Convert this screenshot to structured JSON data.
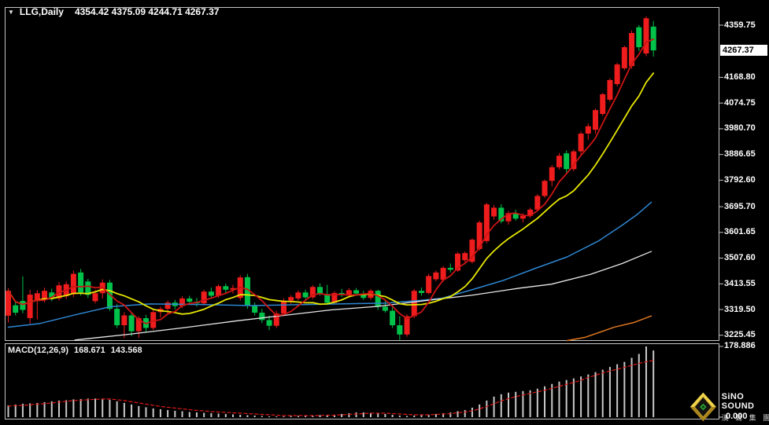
{
  "title_bar": {
    "symbol_period": "LLG,Daily",
    "ohlc": "4354.42 4375.09 4244.71 4267.37"
  },
  "price_axis": {
    "labels": [
      "4359.75",
      "4168.80",
      "4074.75",
      "3980.70",
      "3886.65",
      "3792.60",
      "3695.70",
      "3601.65",
      "3507.60",
      "3413.55",
      "3319.50",
      "3225.45"
    ],
    "current_price": "4267.37"
  },
  "macd_panel": {
    "label": "MACD(12,26,9)",
    "macd_value": "168.671",
    "signal_value": "143.568",
    "axis_top": "178.886",
    "axis_zero": "0.000"
  },
  "logo": {
    "name": "SiNO SOUND",
    "subtitle": "漢 聲 集 團"
  },
  "colors": {
    "bg": "#000000",
    "frame": "#c4c4c4",
    "up_candle": "#ee1c1c",
    "down_candle": "#00c24a",
    "ma_fast": "#cc1414",
    "ma_mid": "#e6e600",
    "ma_blue": "#2e86d0",
    "ma_white": "#e8e8e8",
    "ma_orange": "#e07820",
    "macd_bar": "#c8c8c8",
    "macd_signal": "#e01818",
    "axis_text": "#ffffff",
    "cur_price_bg": "#ffffff"
  },
  "chart_data": {
    "type": "candlestick",
    "symbol": "LLG",
    "period": "Daily",
    "note": "Chinese color convention: red = up, green = down",
    "ylim": [
      3207,
      4426
    ],
    "price_ticks": [
      4359.75,
      4168.8,
      4074.75,
      3980.7,
      3886.65,
      3792.6,
      3695.7,
      3601.65,
      3507.6,
      3413.55,
      3319.5,
      3225.45
    ],
    "last_ohlc": {
      "open": 4354.42,
      "high": 4375.09,
      "low": 4244.71,
      "close": 4267.37
    },
    "candles": [
      [
        3297,
        3398,
        3272,
        3388
      ],
      [
        3335,
        3352,
        3298,
        3308
      ],
      [
        3351,
        3441,
        3306,
        3318
      ],
      [
        3288,
        3392,
        3268,
        3374
      ],
      [
        3350,
        3390,
        3283,
        3379
      ],
      [
        3356,
        3400,
        3345,
        3388
      ],
      [
        3382,
        3396,
        3350,
        3362
      ],
      [
        3360,
        3420,
        3352,
        3408
      ],
      [
        3368,
        3422,
        3358,
        3412
      ],
      [
        3375,
        3462,
        3365,
        3450
      ],
      [
        3455,
        3468,
        3370,
        3382
      ],
      [
        3422,
        3432,
        3362,
        3373
      ],
      [
        3350,
        3392,
        3342,
        3379
      ],
      [
        3379,
        3430,
        3360,
        3418
      ],
      [
        3418,
        3428,
        3315,
        3322
      ],
      [
        3322,
        3340,
        3252,
        3262
      ],
      [
        3262,
        3310,
        3215,
        3298
      ],
      [
        3298,
        3305,
        3222,
        3240
      ],
      [
        3240,
        3295,
        3216,
        3288
      ],
      [
        3288,
        3300,
        3235,
        3252
      ],
      [
        3252,
        3318,
        3245,
        3310
      ],
      [
        3310,
        3330,
        3290,
        3322
      ],
      [
        3322,
        3352,
        3305,
        3345
      ],
      [
        3345,
        3355,
        3320,
        3332
      ],
      [
        3332,
        3368,
        3325,
        3360
      ],
      [
        3360,
        3370,
        3338,
        3348
      ],
      [
        3348,
        3362,
        3330,
        3342
      ],
      [
        3342,
        3392,
        3335,
        3385
      ],
      [
        3385,
        3400,
        3360,
        3370
      ],
      [
        3370,
        3412,
        3362,
        3405
      ],
      [
        3405,
        3415,
        3380,
        3392
      ],
      [
        3392,
        3410,
        3378,
        3398
      ],
      [
        3362,
        3445,
        3352,
        3437
      ],
      [
        3438,
        3450,
        3322,
        3335
      ],
      [
        3335,
        3345,
        3298,
        3308
      ],
      [
        3308,
        3322,
        3270,
        3281
      ],
      [
        3281,
        3298,
        3244,
        3260
      ],
      [
        3260,
        3315,
        3252,
        3305
      ],
      [
        3305,
        3360,
        3295,
        3352
      ],
      [
        3352,
        3372,
        3340,
        3365
      ],
      [
        3360,
        3390,
        3352,
        3382
      ],
      [
        3382,
        3392,
        3358,
        3364
      ],
      [
        3364,
        3408,
        3358,
        3402
      ],
      [
        3402,
        3415,
        3370,
        3376
      ],
      [
        3376,
        3410,
        3338,
        3344
      ],
      [
        3344,
        3386,
        3340,
        3380
      ],
      [
        3380,
        3395,
        3365,
        3372
      ],
      [
        3372,
        3398,
        3362,
        3390
      ],
      [
        3390,
        3398,
        3370,
        3378
      ],
      [
        3378,
        3388,
        3355,
        3362
      ],
      [
        3362,
        3395,
        3355,
        3388
      ],
      [
        3388,
        3392,
        3318,
        3330
      ],
      [
        3330,
        3358,
        3308,
        3315
      ],
      [
        3315,
        3332,
        3252,
        3262
      ],
      [
        3262,
        3295,
        3208,
        3228
      ],
      [
        3228,
        3302,
        3220,
        3295
      ],
      [
        3295,
        3395,
        3288,
        3388
      ],
      [
        3388,
        3400,
        3370,
        3380
      ],
      [
        3380,
        3450,
        3375,
        3442
      ],
      [
        3430,
        3462,
        3422,
        3455
      ],
      [
        3428,
        3478,
        3420,
        3472
      ],
      [
        3472,
        3488,
        3455,
        3465
      ],
      [
        3462,
        3530,
        3458,
        3524
      ],
      [
        3500,
        3532,
        3492,
        3526
      ],
      [
        3494,
        3580,
        3488,
        3575
      ],
      [
        3541,
        3645,
        3535,
        3638
      ],
      [
        3570,
        3710,
        3562,
        3704
      ],
      [
        3660,
        3702,
        3648,
        3692
      ],
      [
        3692,
        3705,
        3635,
        3642
      ],
      [
        3642,
        3680,
        3630,
        3672
      ],
      [
        3672,
        3685,
        3645,
        3652
      ],
      [
        3652,
        3672,
        3638,
        3662
      ],
      [
        3662,
        3692,
        3655,
        3685
      ],
      [
        3685,
        3742,
        3678,
        3735
      ],
      [
        3735,
        3795,
        3728,
        3790
      ],
      [
        3790,
        3848,
        3770,
        3840
      ],
      [
        3840,
        3892,
        3832,
        3882
      ],
      [
        3891,
        3902,
        3820,
        3833
      ],
      [
        3833,
        3905,
        3825,
        3898
      ],
      [
        3898,
        3970,
        3880,
        3963
      ],
      [
        3963,
        4000,
        3940,
        3990
      ],
      [
        3977,
        4055,
        3962,
        4049
      ],
      [
        4035,
        4112,
        4028,
        4107
      ],
      [
        4087,
        4165,
        4080,
        4159
      ],
      [
        4144,
        4222,
        4136,
        4216
      ],
      [
        4202,
        4285,
        4195,
        4279
      ],
      [
        4210,
        4340,
        4200,
        4331
      ],
      [
        4352,
        4360,
        4265,
        4279
      ],
      [
        4256,
        4392,
        4246,
        4385
      ],
      [
        4354.42,
        4375.09,
        4244.71,
        4267.37
      ]
    ],
    "ma_fast_period": 5,
    "ma_mid_period": 11,
    "ma_blue": [
      [
        0,
        3255
      ],
      [
        4.3,
        3268
      ],
      [
        9.2,
        3300
      ],
      [
        14.1,
        3330
      ],
      [
        19.5,
        3340
      ],
      [
        26,
        3338
      ],
      [
        33.6,
        3334
      ],
      [
        41.2,
        3338
      ],
      [
        47.8,
        3341
      ],
      [
        52.1,
        3343
      ],
      [
        56.4,
        3352
      ],
      [
        59.7,
        3360
      ],
      [
        64,
        3392
      ],
      [
        68.4,
        3427
      ],
      [
        72.7,
        3470
      ],
      [
        77.1,
        3512
      ],
      [
        81.4,
        3570
      ],
      [
        84.7,
        3628
      ],
      [
        86.8,
        3668
      ],
      [
        88.7,
        3712
      ]
    ],
    "ma_white": [
      [
        9.2,
        3208
      ],
      [
        16.3,
        3228
      ],
      [
        23.9,
        3252
      ],
      [
        31.5,
        3278
      ],
      [
        38,
        3298
      ],
      [
        44.5,
        3318
      ],
      [
        51,
        3331
      ],
      [
        57.5,
        3352
      ],
      [
        64,
        3372
      ],
      [
        70.6,
        3398
      ],
      [
        74.9,
        3412
      ],
      [
        80.3,
        3448
      ],
      [
        84.7,
        3488
      ],
      [
        88.7,
        3532
      ]
    ],
    "ma_orange": [
      [
        77.1,
        3206
      ],
      [
        79.6,
        3218
      ],
      [
        83.6,
        3255
      ],
      [
        86.3,
        3272
      ],
      [
        88.7,
        3296
      ]
    ],
    "macd": {
      "params": [
        12,
        26,
        9
      ],
      "max": 178.886,
      "histogram": [
        30,
        32,
        34,
        35,
        36,
        38,
        40,
        42,
        43,
        45,
        46,
        47,
        47,
        46,
        44,
        40,
        36,
        32,
        28,
        25,
        22,
        20,
        18,
        16,
        15,
        13,
        12,
        11,
        10,
        9,
        8,
        7,
        6,
        5,
        4,
        3,
        2,
        2,
        2,
        3,
        3,
        4,
        4,
        5,
        5,
        6,
        8,
        10,
        12,
        12,
        11,
        10,
        8,
        6,
        4,
        3,
        4,
        5,
        6,
        8,
        10,
        12,
        15,
        18,
        24,
        32,
        42,
        52,
        58,
        62,
        64,
        66,
        68,
        72,
        78,
        84,
        90,
        94,
        98,
        103,
        108,
        114,
        120,
        127,
        134,
        140,
        150,
        160,
        178.886,
        168.671
      ],
      "signal": [
        28,
        29,
        30,
        31,
        33,
        34,
        36,
        38,
        40,
        42,
        43,
        44,
        45,
        46,
        46,
        44,
        42,
        39,
        36,
        33,
        30,
        27,
        25,
        23,
        21,
        19,
        17,
        16,
        14,
        13,
        12,
        11,
        10,
        9,
        8,
        7,
        6,
        5,
        4,
        4,
        4,
        4,
        4,
        4,
        5,
        5,
        6,
        7,
        8,
        9,
        10,
        10,
        10,
        9,
        8,
        7,
        6,
        6,
        6,
        7,
        8,
        9,
        11,
        13,
        16,
        21,
        27,
        34,
        41,
        47,
        52,
        56,
        60,
        64,
        68,
        73,
        78,
        83,
        88,
        93,
        100,
        106,
        112,
        117,
        121,
        126,
        131,
        136,
        140,
        143.568
      ]
    }
  }
}
